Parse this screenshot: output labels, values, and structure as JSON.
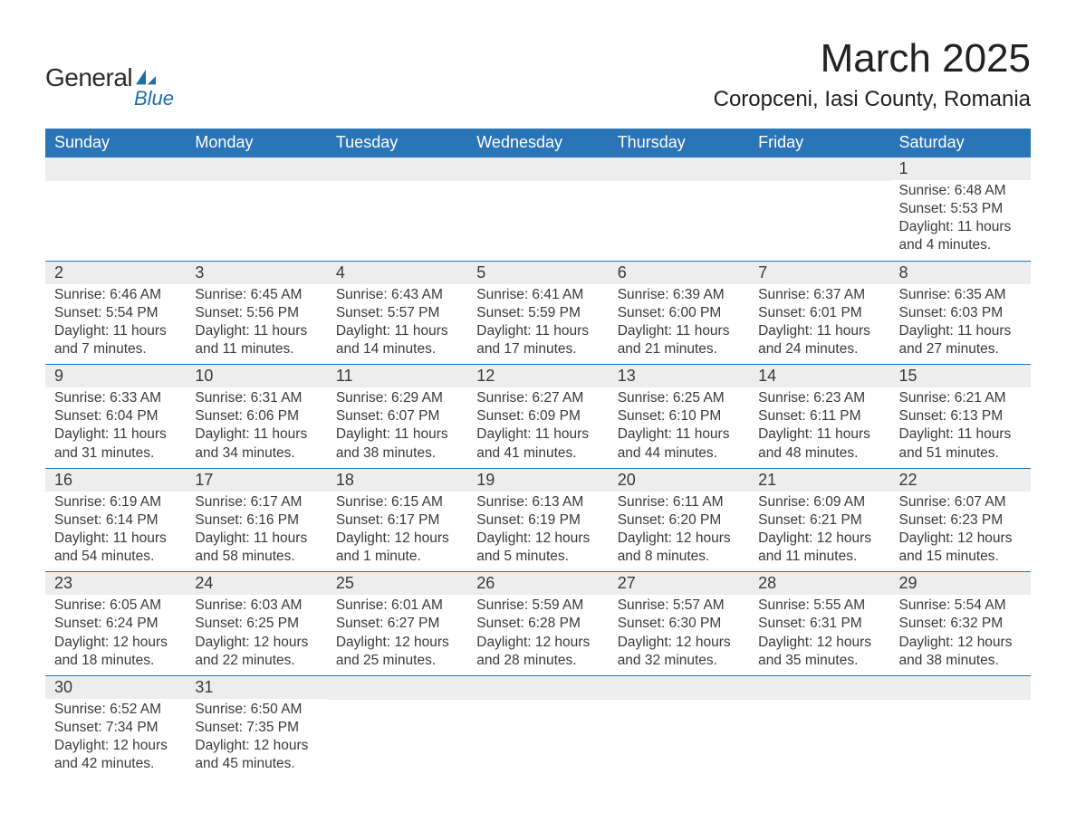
{
  "logo": {
    "text1": "General",
    "text2": "Blue",
    "brand_color": "#1e6ea7"
  },
  "title": "March 2025",
  "location": "Coropceni, Iasi County, Romania",
  "header_bg": "#2a74b8",
  "header_text_color": "#ffffff",
  "daynum_bg": "#ededed",
  "text_color": "#3a3a3a",
  "border_color": "#2a74b8",
  "weekdays": [
    "Sunday",
    "Monday",
    "Tuesday",
    "Wednesday",
    "Thursday",
    "Friday",
    "Saturday"
  ],
  "weeks": [
    [
      null,
      null,
      null,
      null,
      null,
      null,
      {
        "n": "1",
        "sr": "6:48 AM",
        "ss": "5:53 PM",
        "dl": "11 hours and 4 minutes."
      }
    ],
    [
      {
        "n": "2",
        "sr": "6:46 AM",
        "ss": "5:54 PM",
        "dl": "11 hours and 7 minutes."
      },
      {
        "n": "3",
        "sr": "6:45 AM",
        "ss": "5:56 PM",
        "dl": "11 hours and 11 minutes."
      },
      {
        "n": "4",
        "sr": "6:43 AM",
        "ss": "5:57 PM",
        "dl": "11 hours and 14 minutes."
      },
      {
        "n": "5",
        "sr": "6:41 AM",
        "ss": "5:59 PM",
        "dl": "11 hours and 17 minutes."
      },
      {
        "n": "6",
        "sr": "6:39 AM",
        "ss": "6:00 PM",
        "dl": "11 hours and 21 minutes."
      },
      {
        "n": "7",
        "sr": "6:37 AM",
        "ss": "6:01 PM",
        "dl": "11 hours and 24 minutes."
      },
      {
        "n": "8",
        "sr": "6:35 AM",
        "ss": "6:03 PM",
        "dl": "11 hours and 27 minutes."
      }
    ],
    [
      {
        "n": "9",
        "sr": "6:33 AM",
        "ss": "6:04 PM",
        "dl": "11 hours and 31 minutes."
      },
      {
        "n": "10",
        "sr": "6:31 AM",
        "ss": "6:06 PM",
        "dl": "11 hours and 34 minutes."
      },
      {
        "n": "11",
        "sr": "6:29 AM",
        "ss": "6:07 PM",
        "dl": "11 hours and 38 minutes."
      },
      {
        "n": "12",
        "sr": "6:27 AM",
        "ss": "6:09 PM",
        "dl": "11 hours and 41 minutes."
      },
      {
        "n": "13",
        "sr": "6:25 AM",
        "ss": "6:10 PM",
        "dl": "11 hours and 44 minutes."
      },
      {
        "n": "14",
        "sr": "6:23 AM",
        "ss": "6:11 PM",
        "dl": "11 hours and 48 minutes."
      },
      {
        "n": "15",
        "sr": "6:21 AM",
        "ss": "6:13 PM",
        "dl": "11 hours and 51 minutes."
      }
    ],
    [
      {
        "n": "16",
        "sr": "6:19 AM",
        "ss": "6:14 PM",
        "dl": "11 hours and 54 minutes."
      },
      {
        "n": "17",
        "sr": "6:17 AM",
        "ss": "6:16 PM",
        "dl": "11 hours and 58 minutes."
      },
      {
        "n": "18",
        "sr": "6:15 AM",
        "ss": "6:17 PM",
        "dl": "12 hours and 1 minute."
      },
      {
        "n": "19",
        "sr": "6:13 AM",
        "ss": "6:19 PM",
        "dl": "12 hours and 5 minutes."
      },
      {
        "n": "20",
        "sr": "6:11 AM",
        "ss": "6:20 PM",
        "dl": "12 hours and 8 minutes."
      },
      {
        "n": "21",
        "sr": "6:09 AM",
        "ss": "6:21 PM",
        "dl": "12 hours and 11 minutes."
      },
      {
        "n": "22",
        "sr": "6:07 AM",
        "ss": "6:23 PM",
        "dl": "12 hours and 15 minutes."
      }
    ],
    [
      {
        "n": "23",
        "sr": "6:05 AM",
        "ss": "6:24 PM",
        "dl": "12 hours and 18 minutes."
      },
      {
        "n": "24",
        "sr": "6:03 AM",
        "ss": "6:25 PM",
        "dl": "12 hours and 22 minutes."
      },
      {
        "n": "25",
        "sr": "6:01 AM",
        "ss": "6:27 PM",
        "dl": "12 hours and 25 minutes."
      },
      {
        "n": "26",
        "sr": "5:59 AM",
        "ss": "6:28 PM",
        "dl": "12 hours and 28 minutes."
      },
      {
        "n": "27",
        "sr": "5:57 AM",
        "ss": "6:30 PM",
        "dl": "12 hours and 32 minutes."
      },
      {
        "n": "28",
        "sr": "5:55 AM",
        "ss": "6:31 PM",
        "dl": "12 hours and 35 minutes."
      },
      {
        "n": "29",
        "sr": "5:54 AM",
        "ss": "6:32 PM",
        "dl": "12 hours and 38 minutes."
      }
    ],
    [
      {
        "n": "30",
        "sr": "6:52 AM",
        "ss": "7:34 PM",
        "dl": "12 hours and 42 minutes."
      },
      {
        "n": "31",
        "sr": "6:50 AM",
        "ss": "7:35 PM",
        "dl": "12 hours and 45 minutes."
      },
      null,
      null,
      null,
      null,
      null
    ]
  ],
  "labels": {
    "sunrise": "Sunrise: ",
    "sunset": "Sunset: ",
    "daylight": "Daylight: "
  }
}
